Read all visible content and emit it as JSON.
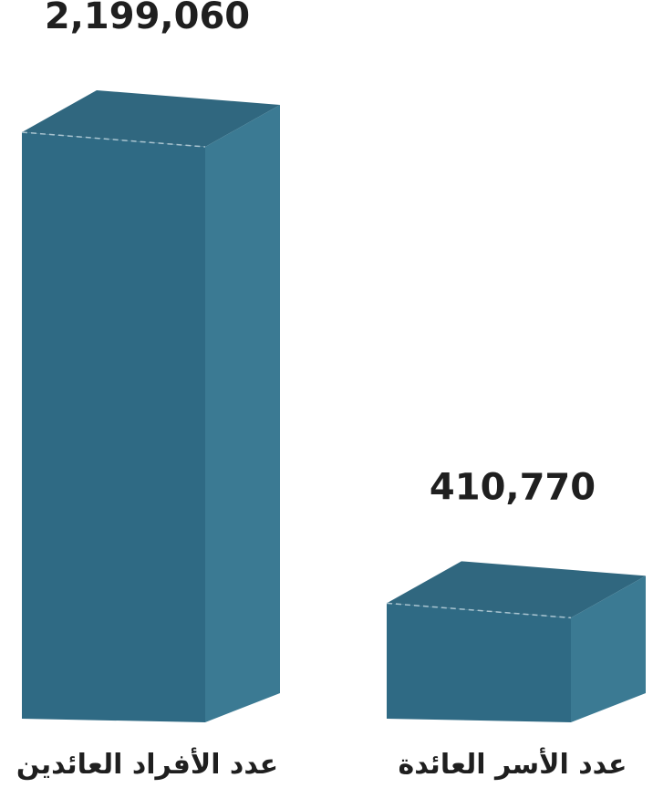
{
  "chart_data": {
    "type": "bar",
    "categories": [
      "عدد الأفراد العائدين",
      "عدد الأسر العائدة"
    ],
    "values": [
      2199060,
      410770
    ],
    "value_labels": [
      "2,199,060",
      "410,770"
    ],
    "title": "",
    "xlabel": "",
    "ylabel": "",
    "ylim": [
      0,
      2199060
    ],
    "grid": false,
    "legend": "none"
  },
  "colors": {
    "bar_front": "#2f6a84",
    "bar_side": "#3b7a93",
    "bar_top": "#30677f",
    "top_dash": "#a9c4d0"
  }
}
